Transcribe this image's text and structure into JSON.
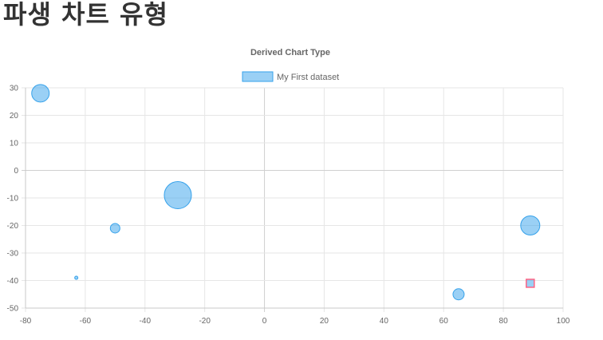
{
  "page": {
    "heading": "파생 차트 유형"
  },
  "chart_data": {
    "type": "bubble",
    "title": "Derived Chart Type",
    "legend": {
      "label": "My First dataset",
      "position": "top"
    },
    "xlim": [
      -80,
      100
    ],
    "ylim": [
      -50,
      30
    ],
    "x_ticks": [
      -80,
      -60,
      -40,
      -20,
      0,
      20,
      40,
      60,
      80,
      100
    ],
    "y_ticks": [
      30,
      20,
      10,
      0,
      -10,
      -20,
      -30,
      -40,
      -50
    ],
    "grid": true,
    "series": [
      {
        "name": "My First dataset",
        "points": [
          {
            "x": -75,
            "y": 28,
            "r": 11
          },
          {
            "x": -63,
            "y": -39,
            "r": 2
          },
          {
            "x": -50,
            "y": -21,
            "r": 6
          },
          {
            "x": -29,
            "y": -9,
            "r": 17
          },
          {
            "x": 65,
            "y": -45,
            "r": 7
          },
          {
            "x": 89,
            "y": -20,
            "r": 12
          },
          {
            "x": 89,
            "y": -41,
            "r": 4,
            "highlighted": true
          }
        ]
      }
    ],
    "colors": {
      "fill": "rgba(54,162,235,0.5)",
      "stroke": "#36a2eb",
      "highlight_fill": "rgba(54,162,235,0.5)",
      "highlight_stroke": "#ff6384",
      "grid": "#e6e6e6",
      "axis": "#c8c8c8",
      "text": "#666666"
    }
  }
}
